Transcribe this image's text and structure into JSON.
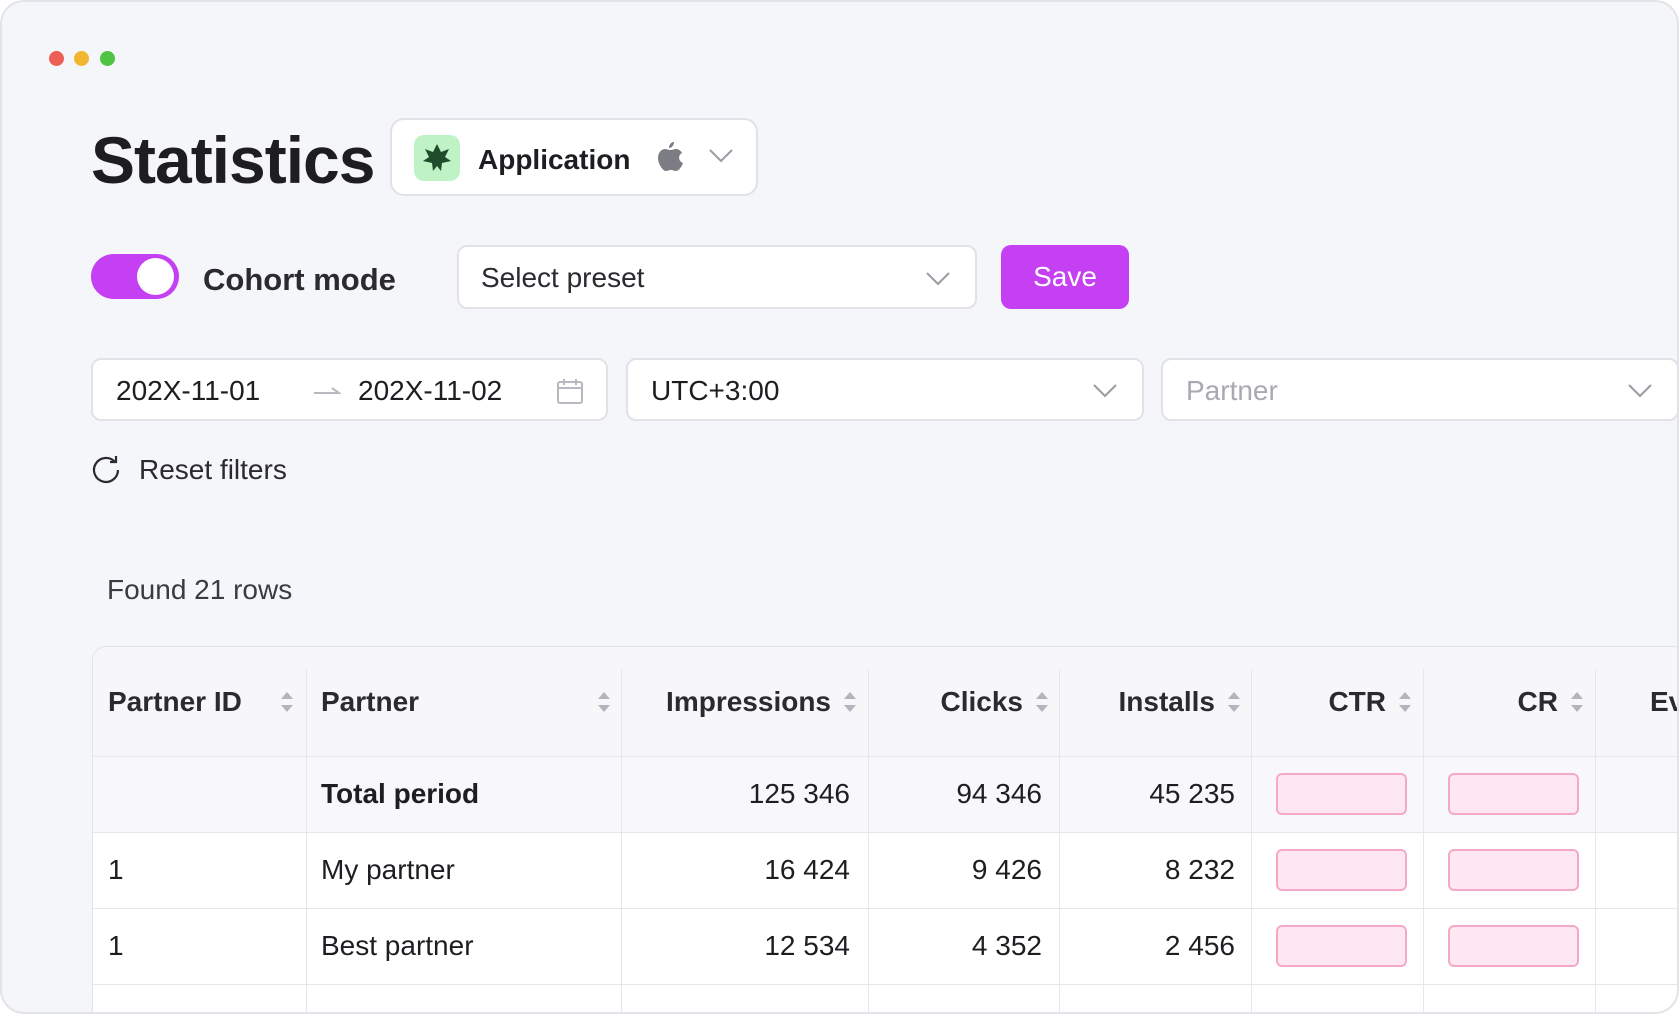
{
  "header": {
    "title": "Statistics",
    "app": "Application"
  },
  "controls": {
    "toggle_label": "Cohort mode",
    "preset_placeholder": "Select preset",
    "save": "Save",
    "date_from": "202X-11-01",
    "date_to": "202X-11-02",
    "timezone": "UTC+3:00",
    "partner_placeholder": "Partner",
    "reset": "Reset filters"
  },
  "table": {
    "found": "Found 21 rows",
    "columns": [
      "Partner ID",
      "Partner",
      "Impressions",
      "Clicks",
      "Installs",
      "CTR",
      "CR",
      "Ev"
    ],
    "rows": [
      {
        "partner": "Total period",
        "impressions": "125 346",
        "clicks": "94 346",
        "installs": "45 235"
      },
      {
        "id": "1",
        "partner": "My partner",
        "impressions": "16 424",
        "clicks": "9 426",
        "installs": "8 232"
      },
      {
        "id": "1",
        "partner": "Best partner",
        "impressions": "12 534",
        "clicks": "4 352",
        "installs": "2 456"
      }
    ]
  }
}
